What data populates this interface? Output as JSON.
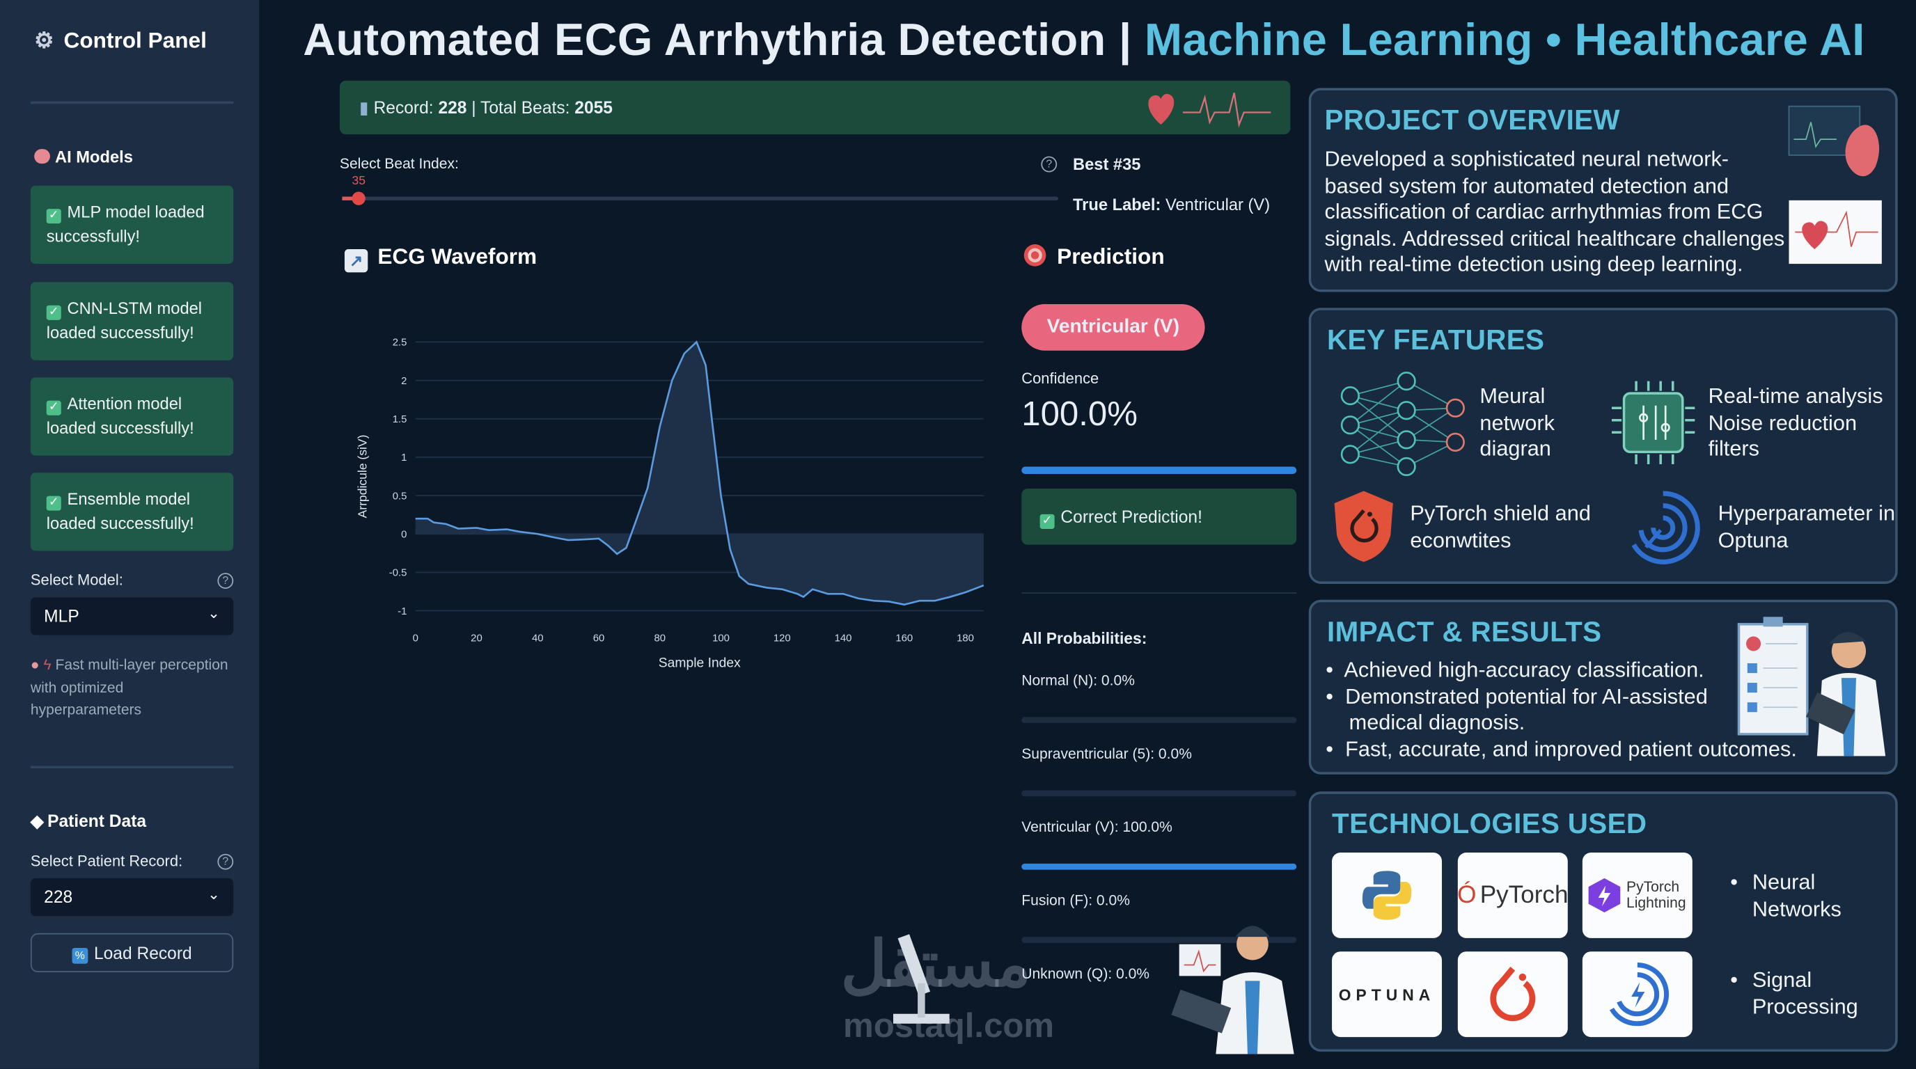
{
  "sidebar": {
    "title": "Control Panel",
    "ai_models_heading": "AI Models",
    "model_status": [
      "MLP model loaded successfully!",
      "CNN-LSTM model loaded successfully!",
      "Attention model loaded successfully!",
      "Ensemble model loaded successfully!"
    ],
    "select_model_label": "Select Model:",
    "selected_model": "MLP",
    "model_description": "Fast multi-layer perception with optimized hyperparameters",
    "patient_heading": "Patient Data",
    "select_record_label": "Select Patient Record:",
    "selected_record": "228",
    "load_button": "Load Record"
  },
  "header": {
    "title_main": "Automated ECG Arrhythria Detection | ",
    "title_accent": "Machine Learning • Healthcare AI",
    "accent_color": "#5cc1e0"
  },
  "banner": {
    "record_label": "Record: ",
    "record_value": "228",
    "sep": " | ",
    "beats_label": "Total Beats: ",
    "beats_value": "2055"
  },
  "beat_selector": {
    "label": "Select Beat Index:",
    "value": "35",
    "best": "Best #35",
    "true_label_key": "True Label:",
    "true_label_value": "Ventricular (V)"
  },
  "waveform": {
    "heading": "ECG Waveform"
  },
  "chart_data": {
    "type": "area",
    "xlabel": "Sample Index",
    "ylabel": "Arrpdicule (siV)",
    "xlim": [
      0,
      186
    ],
    "ylim": [
      -1,
      2.5
    ],
    "xticks": [
      0,
      20,
      40,
      60,
      80,
      100,
      120,
      140,
      160,
      180
    ],
    "yticks": [
      -1,
      -0.5,
      0,
      0.5,
      1,
      1.5,
      2,
      2.5
    ],
    "grid": true,
    "line_color": "#5b9be0",
    "x": [
      0,
      4,
      6,
      10,
      14,
      20,
      24,
      30,
      34,
      40,
      46,
      50,
      56,
      60,
      63,
      66,
      69,
      72,
      76,
      80,
      84,
      88,
      92,
      95,
      97,
      100,
      103,
      106,
      109,
      115,
      120,
      125,
      127,
      130,
      135,
      140,
      145,
      150,
      155,
      160,
      165,
      170,
      175,
      180,
      186
    ],
    "y": [
      0.2,
      0.2,
      0.15,
      0.13,
      0.07,
      0.08,
      0.05,
      0.06,
      0.03,
      0.0,
      -0.05,
      -0.08,
      -0.07,
      -0.06,
      -0.15,
      -0.26,
      -0.18,
      0.15,
      0.6,
      1.4,
      2.0,
      2.35,
      2.5,
      2.2,
      1.5,
      0.5,
      -0.2,
      -0.55,
      -0.65,
      -0.7,
      -0.72,
      -0.78,
      -0.82,
      -0.72,
      -0.78,
      -0.78,
      -0.84,
      -0.87,
      -0.88,
      -0.92,
      -0.87,
      -0.87,
      -0.82,
      -0.76,
      -0.67
    ]
  },
  "prediction": {
    "heading": "Prediction",
    "label": "Ventricular (V)",
    "label_color": "#e8677f",
    "confidence_label": "Confidence",
    "confidence_value": "100.0%",
    "confidence_fraction": 1.0,
    "result": "Correct Prediction!",
    "all_heading": "All Probabilities:",
    "probabilities": [
      {
        "label": "Normal (N): 0.0%",
        "value": 0.0
      },
      {
        "label": "Supraventricular (5): 0.0%",
        "value": 0.0
      },
      {
        "label": "Ventricular (V): 100.0%",
        "value": 1.0
      },
      {
        "label": "Fusion (F): 0.0%",
        "value": 0.0
      },
      {
        "label": "Unknown (Q): 0.0%",
        "value": 0.0
      }
    ]
  },
  "overview": {
    "heading": "PROJECT OVERVIEW",
    "text": "Developed a sophisticated neural network-based system for automated detection and classification of cardiac arrhythmias from ECG signals. Addressed critical healthcare challenges with real-time detection using deep learning."
  },
  "features": {
    "heading": "KEY FEATURES",
    "items": [
      "Meural network diagran",
      "Real-time analysis Noise reduction filters",
      "PyTorch shield and econwtites",
      "Hyperparameter in Optuna"
    ]
  },
  "impact": {
    "heading": "IMPACT & RESULTS",
    "bullets": [
      "Achieved high-accuracy classification.",
      "Demonstrated potential for AI-assisted medical diagnosis.",
      "Fast, accurate, and improved patient outcomes."
    ]
  },
  "technologies": {
    "heading": "TECHNOLOGIES USED",
    "logos": [
      "python-logo",
      "PyTorch",
      "PyTorch Lightning",
      "OPTUNA",
      "pytorch-flame-logo",
      "optuna-logo"
    ],
    "pytorch": "PyTorch",
    "lightning_1": "PyTorch",
    "lightning_2": "Lightning",
    "optuna": "OPTUNA",
    "bullets": [
      "Neural Networks",
      "Signal Processing"
    ]
  },
  "watermark": {
    "arabic": "مستقل",
    "latin": "mostaql.com"
  }
}
